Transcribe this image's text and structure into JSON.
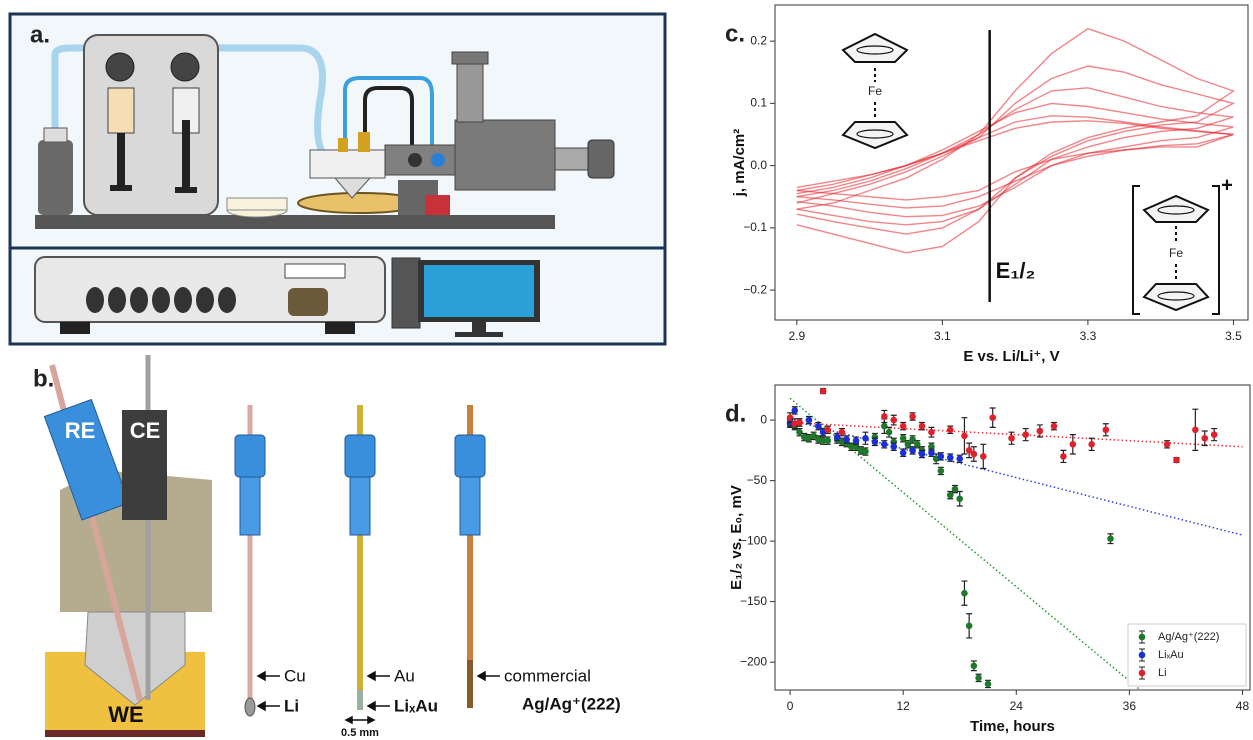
{
  "figure": {
    "panel_labels": [
      "a.",
      "b."
    ],
    "probe_labels": [
      "RE",
      "CE",
      "WE"
    ],
    "electrodes": [
      {
        "upper": "Cu",
        "lower": "Li"
      },
      {
        "upper": "Au",
        "lower": "LiₓAu"
      },
      {
        "upper": "commercial",
        "lower": "Ag/Ag⁺(222)"
      }
    ],
    "scale_label": "0.5 mm",
    "ferrocene": [
      "Fe",
      "Fe"
    ],
    "charge": "+"
  },
  "chart_data": [
    {
      "type": "line",
      "title": "c.",
      "x_label": "E vs. Li/Li⁺, V",
      "y_label": "j, mA/cm²",
      "x": [
        2.9,
        2.95,
        3.0,
        3.05,
        3.1,
        3.15,
        3.2,
        3.25,
        3.3,
        3.35,
        3.4,
        3.45,
        3.5,
        3.45,
        3.4,
        3.35,
        3.3,
        3.25,
        3.2,
        3.15,
        3.1,
        3.05,
        3.0,
        2.95,
        2.9
      ],
      "series": [
        {
          "color": "#e8202a",
          "values": [
            -0.045,
            -0.035,
            -0.02,
            0.0,
            0.025,
            0.055,
            0.085,
            0.1,
            0.095,
            0.085,
            0.075,
            0.068,
            0.062,
            0.045,
            0.04,
            0.03,
            0.02,
            0.0,
            -0.035,
            -0.065,
            -0.08,
            -0.082,
            -0.075,
            -0.065,
            -0.058
          ]
        },
        {
          "color": "#e8202a",
          "values": [
            -0.05,
            -0.04,
            -0.025,
            -0.005,
            0.02,
            0.05,
            0.09,
            0.12,
            0.125,
            0.11,
            0.095,
            0.085,
            0.078,
            0.06,
            0.055,
            0.045,
            0.03,
            0.01,
            -0.03,
            -0.07,
            -0.09,
            -0.095,
            -0.09,
            -0.08,
            -0.07
          ]
        },
        {
          "color": "#e8202a",
          "values": [
            -0.04,
            -0.03,
            -0.015,
            0.0,
            0.02,
            0.045,
            0.07,
            0.08,
            0.078,
            0.07,
            0.062,
            0.056,
            0.05,
            0.035,
            0.032,
            0.025,
            0.015,
            0.0,
            -0.025,
            -0.05,
            -0.065,
            -0.068,
            -0.062,
            -0.055,
            -0.05
          ]
        },
        {
          "color": "#e8202a",
          "values": [
            -0.06,
            -0.045,
            -0.03,
            -0.01,
            0.015,
            0.045,
            0.1,
            0.14,
            0.16,
            0.15,
            0.13,
            0.115,
            0.1,
            0.07,
            0.065,
            0.055,
            0.04,
            0.015,
            -0.02,
            -0.07,
            -0.1,
            -0.11,
            -0.1,
            -0.09,
            -0.078
          ]
        },
        {
          "color": "#e8202a",
          "values": [
            -0.035,
            -0.025,
            -0.015,
            0.0,
            0.02,
            0.04,
            0.06,
            0.07,
            0.072,
            0.068,
            0.06,
            0.055,
            0.05,
            0.03,
            0.03,
            0.025,
            0.02,
            0.01,
            -0.01,
            -0.04,
            -0.05,
            -0.055,
            -0.05,
            -0.045,
            -0.04
          ]
        },
        {
          "color": "#e8202a",
          "values": [
            -0.07,
            -0.06,
            -0.04,
            -0.02,
            0.01,
            0.05,
            0.12,
            0.18,
            0.22,
            0.2,
            0.17,
            0.14,
            0.12,
            0.08,
            0.07,
            0.06,
            0.045,
            0.02,
            -0.02,
            -0.09,
            -0.13,
            -0.14,
            -0.125,
            -0.11,
            -0.095
          ]
        }
      ],
      "xlim": [
        2.87,
        3.52
      ],
      "xticks": [
        2.9,
        3.1,
        3.3,
        3.5
      ],
      "ylim": [
        -0.248,
        0.258
      ],
      "yticks": [
        {
          "value": -0.2,
          "label": "−0.2"
        },
        {
          "value": -0.1,
          "label": "−0.1"
        },
        {
          "value": 0,
          "label": "0.0"
        },
        {
          "value": 0.1,
          "label": "0.1"
        },
        {
          "value": 0.2,
          "label": "0.2"
        }
      ],
      "annotations": [
        {
          "text": "E₁/₂",
          "x": 3.165
        }
      ]
    },
    {
      "type": "scatter",
      "title": "d.",
      "x_label": "Time, hours",
      "y_label": "E₁/₂ vs. E₀, mV",
      "legend": "lower right",
      "xlim": [
        -1.6,
        48.8
      ],
      "xticks": [
        0,
        12,
        24,
        36,
        48
      ],
      "ylim": [
        -223,
        29
      ],
      "yticks": [
        {
          "value": -200,
          "label": "−200"
        },
        {
          "value": -150,
          "label": "−150"
        },
        {
          "value": -100,
          "label": "−100"
        },
        {
          "value": -50,
          "label": "−50"
        },
        0
      ],
      "series": [
        {
          "name": "Ag/Ag⁺(222)",
          "color": "#1e7a2a",
          "x": [
            0,
            0.5,
            1,
            1.5,
            2,
            2.5,
            3,
            3.5,
            4,
            5,
            5.5,
            6,
            6.5,
            7,
            7.5,
            8,
            9,
            10,
            10.5,
            11,
            12,
            12.5,
            13,
            13.5,
            14,
            15,
            15.5,
            16,
            17,
            17.5,
            18,
            18.5,
            19,
            19.5,
            20,
            21,
            34
          ],
          "values": [
            -3,
            -5,
            -10,
            -14,
            -15,
            -13,
            -16,
            -17,
            -17,
            -16,
            -18,
            -19,
            -22,
            -22,
            -25,
            -26,
            -14,
            -5,
            -10,
            -18,
            -15,
            -20,
            -16,
            -20,
            -25,
            -22,
            -32,
            -42,
            -62,
            -57,
            -65,
            -143,
            -170,
            -203,
            -213,
            -218,
            -98
          ],
          "errors": [
            3,
            3,
            3,
            3,
            3,
            3,
            3,
            3,
            3,
            3,
            3,
            3,
            3,
            3,
            3,
            3,
            3,
            6,
            4,
            3,
            3,
            3,
            3,
            3,
            3,
            3,
            4,
            3,
            3,
            3,
            6,
            10,
            10,
            4,
            3,
            3,
            4
          ]
        },
        {
          "name": "LiₓAu",
          "color": "#1a2fd6",
          "x": [
            0,
            0.5,
            1,
            2,
            3,
            3.5,
            5,
            6,
            7,
            8,
            9,
            10,
            11,
            12,
            13,
            14,
            15,
            16,
            17,
            18
          ],
          "values": [
            -2,
            8,
            -2,
            0,
            -5,
            -10,
            -14,
            -16,
            -17,
            -15,
            -18,
            -20,
            -22,
            -27,
            -25,
            -28,
            -27,
            -30,
            -31,
            -32
          ],
          "errors": [
            3,
            3,
            3,
            3,
            3,
            3,
            3,
            3,
            3,
            5,
            3,
            3,
            3,
            3,
            3,
            3,
            3,
            3,
            3,
            3
          ]
        },
        {
          "name": "Li",
          "color": "#e0202a",
          "x": [
            0,
            0.5,
            1,
            3.5,
            4,
            5.5,
            10,
            11,
            12,
            13,
            14,
            15,
            17,
            18.5,
            19,
            19.5,
            20.5,
            21.5,
            23.5,
            25,
            26.5,
            28,
            29,
            30,
            32,
            33.5,
            40,
            41,
            43,
            44,
            45
          ],
          "values": [
            2,
            -3,
            -2,
            24,
            -8,
            -10,
            3,
            0,
            -5,
            3,
            -5,
            -10,
            -8,
            -13,
            -25,
            -28,
            -30,
            2,
            -15,
            -12,
            -9,
            -5,
            -30,
            -20,
            -20,
            -8,
            -20,
            -33,
            -8,
            -15,
            -12
          ],
          "errors": [
            4,
            4,
            3,
            2,
            3,
            3,
            5,
            4,
            3,
            3,
            3,
            4,
            3,
            15,
            6,
            6,
            10,
            8,
            5,
            5,
            5,
            3,
            5,
            8,
            5,
            5,
            3,
            2,
            17,
            6,
            5
          ]
        }
      ],
      "trend_lines": [
        {
          "color": "#1e9a2a",
          "x": [
            0,
            37
          ],
          "values": [
            18,
            -222
          ]
        },
        {
          "color": "#3040e0",
          "x": [
            0,
            48
          ],
          "values": [
            0,
            -95
          ]
        },
        {
          "color": "#e0303a",
          "x": [
            0,
            48
          ],
          "values": [
            -2,
            -22
          ]
        }
      ]
    }
  ]
}
